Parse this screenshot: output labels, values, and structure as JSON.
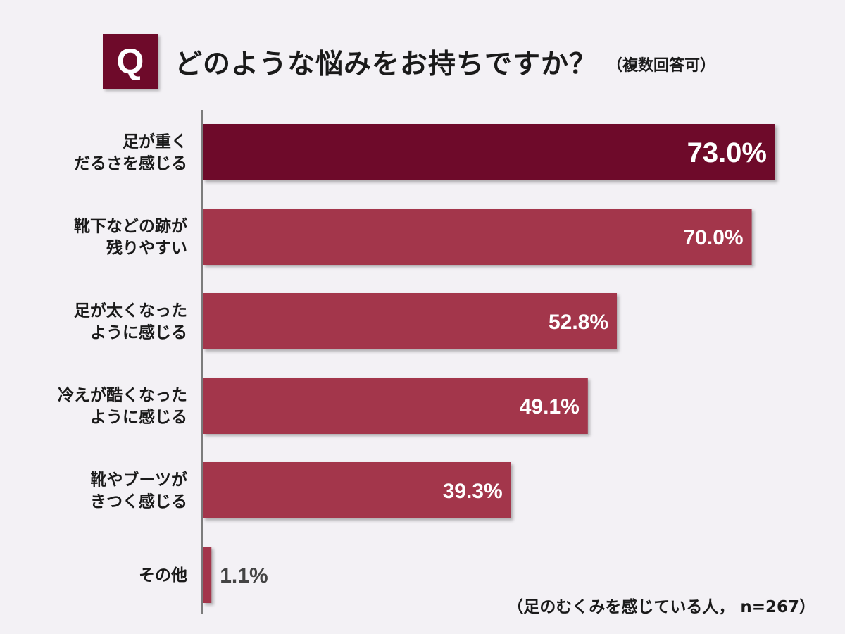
{
  "question": {
    "badge": "Q",
    "text": "どのような悩みをお持ちですか？",
    "note": "（複数回答可）"
  },
  "chart_data": {
    "type": "bar",
    "orientation": "horizontal",
    "categories": [
      [
        "足が重く",
        "だるさを感じる"
      ],
      [
        "靴下などの跡が",
        "残りやすい"
      ],
      [
        "足が太くなった",
        "ように感じる"
      ],
      [
        "冷えが酷くなった",
        "ように感じる"
      ],
      [
        "靴やブーツが",
        "きつく感じる"
      ],
      [
        "その他"
      ]
    ],
    "values": [
      73.0,
      70.0,
      52.8,
      49.1,
      39.3,
      1.1
    ],
    "value_labels": [
      "73.0%",
      "70.0%",
      "52.8%",
      "49.1%",
      "39.3%",
      "1.1%"
    ],
    "unit": "%",
    "xlim": [
      0,
      73.0
    ],
    "highlight_index": 0,
    "colors": {
      "highlight": "#6e0a2a",
      "bar": "#a3364b",
      "axis": "#555555",
      "label_inside": "#ffffff",
      "label_outside": "#444444"
    }
  },
  "footnote": "（足のむくみを感じている人， n=267）"
}
